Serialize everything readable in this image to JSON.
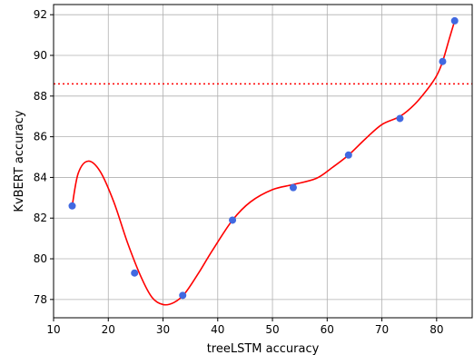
{
  "chart_data": {
    "type": "scatter",
    "title": "",
    "xlabel": "treeLSTM accuracy",
    "ylabel": "KvBERT accuracy",
    "xlim": [
      10,
      86.5
    ],
    "ylim": [
      77.1,
      92.5
    ],
    "xticks": [
      10,
      20,
      30,
      40,
      50,
      60,
      70,
      80
    ],
    "yticks": [
      78,
      80,
      82,
      84,
      86,
      88,
      90,
      92
    ],
    "grid": true,
    "series": [
      {
        "kind": "points",
        "color": "#4169e1",
        "x": [
          13.4,
          24.8,
          33.6,
          42.7,
          53.8,
          63.9,
          73.3,
          81.1,
          83.3
        ],
        "y": [
          82.6,
          79.3,
          78.2,
          81.9,
          83.5,
          85.1,
          86.9,
          89.7,
          91.7
        ]
      },
      {
        "kind": "fit-curve",
        "color": "#ff0000",
        "x": [
          13.4,
          14.5,
          16.3,
          18.5,
          21.0,
          23.5,
          26.0,
          28.0,
          30.0,
          32.0,
          34.0,
          36.5,
          39.0,
          42.7,
          46.0,
          50.0,
          53.8,
          58.0,
          61.0,
          63.9,
          67.0,
          70.0,
          73.3,
          76.0,
          78.5,
          80.0,
          81.1,
          82.3,
          83.3
        ],
        "y": [
          82.6,
          84.2,
          84.8,
          84.3,
          82.8,
          80.8,
          79.1,
          78.1,
          77.75,
          77.85,
          78.3,
          79.3,
          80.4,
          81.9,
          82.8,
          83.4,
          83.65,
          83.95,
          84.5,
          85.1,
          85.9,
          86.6,
          87.0,
          87.6,
          88.4,
          89.0,
          89.7,
          90.8,
          91.7
        ]
      },
      {
        "kind": "hline",
        "color": "#ff0000",
        "y": 88.6
      }
    ]
  }
}
